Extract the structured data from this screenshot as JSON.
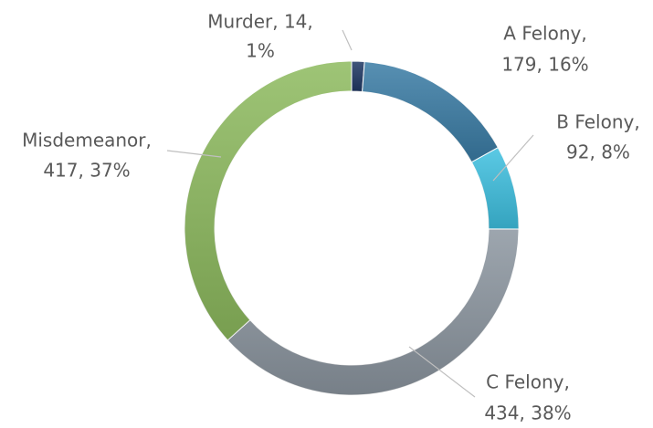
{
  "chart_data": {
    "type": "donut",
    "categories": [
      "Murder",
      "A Felony",
      "B Felony",
      "C Felony",
      "Misdemeanor"
    ],
    "values": [
      14,
      179,
      92,
      434,
      417
    ],
    "value_labels": [
      [
        "Murder, 14,",
        "1%"
      ],
      [
        "A Felony,",
        "179, 16%"
      ],
      [
        "B Felony,",
        "92, 8%"
      ],
      [
        "C Felony,",
        "434, 38%"
      ],
      [
        "Misdemeanor,",
        "417, 37%"
      ]
    ],
    "colors": [
      "#1f3864",
      "#3a7ca5",
      "#3ec0e0",
      "#8c96a0",
      "#8dba5e"
    ]
  }
}
